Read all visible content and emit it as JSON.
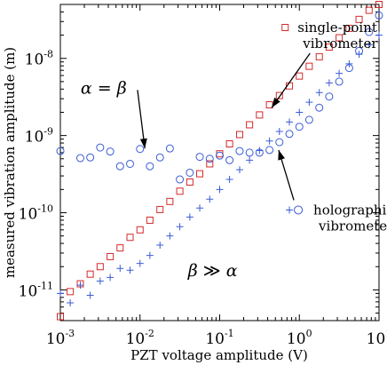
{
  "chart_data": {
    "type": "scatter",
    "xlabel": "PZT voltage amplitude (V)",
    "ylabel": "measured vibration amplitude (m)",
    "xscale": "log",
    "yscale": "log",
    "xlim": [
      0.001,
      10
    ],
    "ylim": [
      4e-12,
      5e-08
    ],
    "xticks": [
      {
        "base": "10",
        "exp": "-3",
        "value": 0.001
      },
      {
        "base": "10",
        "exp": "-2",
        "value": 0.01
      },
      {
        "base": "10",
        "exp": "-1",
        "value": 0.1
      },
      {
        "base": "10",
        "exp": "0",
        "value": 1
      },
      {
        "base": "10",
        "exp": "1",
        "value": 10
      }
    ],
    "yticks": [
      {
        "base": "10",
        "exp": "-11",
        "value": 1e-11
      },
      {
        "base": "10",
        "exp": "-10",
        "value": 1e-10
      },
      {
        "base": "10",
        "exp": "-9",
        "value": 1e-09
      },
      {
        "base": "10",
        "exp": "-8",
        "value": 1e-08
      }
    ],
    "grid": false,
    "series": [
      {
        "name": "single-point vibrometer",
        "marker": "square",
        "color": "#d42a2a",
        "x": [
          0.001,
          0.00133,
          0.00178,
          0.00237,
          0.00316,
          0.00422,
          0.00562,
          0.0075,
          0.01,
          0.0133,
          0.0178,
          0.0237,
          0.0316,
          0.0422,
          0.0562,
          0.075,
          0.1,
          0.133,
          0.178,
          0.237,
          0.316,
          0.422,
          0.562,
          0.75,
          1,
          1.33,
          1.78,
          2.37,
          3.16,
          4.22,
          5.62,
          7.5,
          10
        ],
        "y": [
          4.5e-12,
          9.5e-12,
          1.2e-11,
          1.6e-11,
          2e-11,
          2.7e-11,
          3.5e-11,
          4.8e-11,
          6e-11,
          8e-11,
          1.1e-10,
          1.4e-10,
          1.9e-10,
          2.5e-10,
          3.2e-10,
          4.3e-10,
          5.8e-10,
          7.8e-10,
          1.03e-09,
          1.38e-09,
          1.85e-09,
          2.5e-09,
          3.3e-09,
          4.4e-09,
          5.9e-09,
          7.9e-09,
          1.05e-08,
          1.4e-08,
          1.85e-08,
          2.45e-08,
          3.2e-08,
          4.2e-08,
          5e-08
        ]
      },
      {
        "name": "holographic vibrometer",
        "marker": "circle",
        "color": "#3a5cd6",
        "x": [
          0.001,
          0.00178,
          0.00237,
          0.00316,
          0.00422,
          0.00562,
          0.0075,
          0.01,
          0.0133,
          0.0178,
          0.0237,
          0.0316,
          0.0422,
          0.0562,
          0.075,
          0.1,
          0.133,
          0.178,
          0.237,
          0.316,
          0.422,
          0.562,
          0.75,
          1,
          1.33,
          1.78,
          2.37,
          3.16,
          4.22,
          5.62,
          7.5,
          10
        ],
        "y": [
          6.3e-10,
          5.1e-10,
          5.2e-10,
          7e-10,
          6.2e-10,
          4e-10,
          4.3e-10,
          6.7e-10,
          4e-10,
          5.2e-10,
          6.8e-10,
          2.7e-10,
          3.3e-10,
          5.3e-10,
          5e-10,
          5.5e-10,
          4.8e-10,
          6.3e-10,
          6e-10,
          6e-10,
          6.5e-10,
          8.2e-10,
          1.05e-09,
          1.3e-09,
          1.6e-09,
          2.3e-09,
          3.2e-09,
          5e-09,
          7.5e-09,
          1.25e-08,
          2.2e-08,
          3.6e-08
        ]
      },
      {
        "name": "",
        "marker": "plus",
        "color": "#3a5cd6",
        "x": [
          0.001,
          0.00133,
          0.00178,
          0.00237,
          0.00316,
          0.00422,
          0.00562,
          0.0075,
          0.01,
          0.0133,
          0.0178,
          0.0237,
          0.0316,
          0.0422,
          0.0562,
          0.075,
          0.1,
          0.133,
          0.178,
          0.237,
          0.316,
          0.422,
          0.562,
          0.75,
          1,
          1.33,
          1.78,
          2.37,
          3.16,
          4.22,
          5.62,
          7.5,
          10
        ],
        "y": [
          9e-12,
          6.8e-12,
          1.15e-11,
          8.5e-12,
          1.3e-11,
          1.45e-11,
          1.9e-11,
          1.8e-11,
          2.2e-11,
          2.8e-11,
          3.8e-11,
          5e-11,
          6.6e-11,
          8.8e-11,
          1.15e-10,
          1.5e-10,
          2e-10,
          2.7e-10,
          3.6e-10,
          4.8e-10,
          6.4e-10,
          8.5e-10,
          1.13e-09,
          1.5e-09,
          2e-09,
          2.7e-09,
          3.6e-09,
          4.8e-09,
          6.4e-09,
          8.5e-09,
          1.13e-08,
          1.5e-08,
          2e-08
        ]
      }
    ],
    "annotations": [
      {
        "id": "single",
        "lines": [
          "single-point",
          "vibrometer"
        ],
        "x": 0.95,
        "y": 2.2e-08,
        "arrow_to": {
          "x": 0.45,
          "y": 2.3e-09
        }
      },
      {
        "id": "holo",
        "lines": [
          "holographic",
          "vibrometer"
        ],
        "x": 1.5,
        "y": 9.5e-11,
        "arrow_to": {
          "x": 0.55,
          "y": 6.5e-10
        }
      },
      {
        "id": "alpha_beta",
        "math": [
          "α",
          " = ",
          "β"
        ],
        "x": 0.0018,
        "y": 3.5e-09,
        "arrow_to": {
          "x": 0.0115,
          "y": 6.8e-10
        }
      },
      {
        "id": "beta_alpha",
        "math": [
          "β",
          " ≫ ",
          "α"
        ],
        "x": 0.04,
        "y": 1.5e-11
      }
    ],
    "legend": {
      "position": "inline-annotation",
      "entries": [
        {
          "label": "single-point vibrometer",
          "marker": "square"
        },
        {
          "label": "holographic vibrometer",
          "marker": "plus-circle"
        }
      ]
    }
  }
}
